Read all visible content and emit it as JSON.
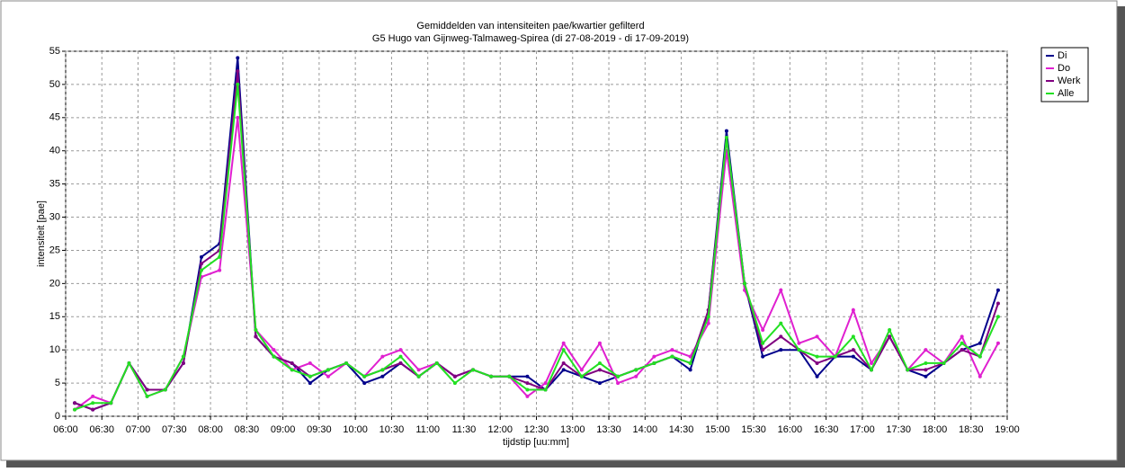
{
  "chart_data": {
    "type": "line",
    "title": "Gemiddelden van intensiteiten pae/kwartier gefilterd",
    "subtitle": "G5 Hugo van Gijnweg-Talmaweg-Spirea (di 27-08-2019 - di 17-09-2019)",
    "xlabel": "tijdstip [uu:mm]",
    "ylabel": "intensiteit [pae]",
    "x": [
      367.5,
      382.5,
      397.5,
      412.5,
      427.5,
      442.5,
      457.5,
      472.5,
      487.5,
      502.5,
      517.5,
      532.5,
      547.5,
      562.5,
      577.5,
      592.5,
      607.5,
      622.5,
      637.5,
      652.5,
      667.5,
      682.5,
      697.5,
      712.5,
      727.5,
      742.5,
      757.5,
      772.5,
      787.5,
      802.5,
      817.5,
      832.5,
      847.5,
      862.5,
      877.5,
      892.5,
      907.5,
      922.5,
      937.5,
      952.5,
      967.5,
      982.5,
      997.5,
      1012.5,
      1027.5,
      1042.5,
      1057.5,
      1072.5,
      1087.5,
      1102.5,
      1117.5,
      1132.5
    ],
    "series": [
      {
        "name": "Di",
        "color": "#00008b",
        "values": [
          2,
          1,
          2,
          8,
          4,
          4,
          8,
          24,
          26,
          54,
          12,
          9,
          8,
          5,
          7,
          8,
          5,
          6,
          8,
          6,
          8,
          6,
          7,
          6,
          6,
          6,
          4,
          7,
          6,
          5,
          6,
          7,
          8,
          9,
          7,
          16,
          43,
          20,
          9,
          10,
          10,
          6,
          9,
          9,
          7,
          12,
          7,
          6,
          8,
          10,
          11,
          19
        ]
      },
      {
        "name": "Do",
        "color": "#e020d0",
        "values": [
          1,
          3,
          2,
          8,
          3,
          4,
          9,
          21,
          22,
          45,
          13,
          10,
          7,
          8,
          6,
          8,
          6,
          9,
          10,
          7,
          8,
          6,
          7,
          6,
          6,
          3,
          5,
          11,
          7,
          11,
          5,
          6,
          9,
          10,
          9,
          14,
          40,
          19,
          13,
          19,
          11,
          12,
          9,
          16,
          8,
          12,
          7,
          10,
          8,
          12,
          6,
          11
        ]
      },
      {
        "name": "Werk",
        "color": "#800080",
        "values": [
          2,
          1,
          2,
          8,
          4,
          4,
          8,
          23,
          25,
          52,
          12,
          9,
          8,
          6,
          7,
          8,
          6,
          7,
          8,
          6,
          8,
          6,
          7,
          6,
          6,
          5,
          4,
          8,
          6,
          7,
          6,
          7,
          8,
          9,
          8,
          16,
          42,
          20,
          10,
          12,
          10,
          8,
          9,
          10,
          7,
          12,
          7,
          7,
          8,
          10,
          9,
          17
        ]
      },
      {
        "name": "Alle",
        "color": "#22e022",
        "values": [
          1,
          2,
          2,
          8,
          3,
          4,
          9,
          22,
          24,
          50,
          13,
          9,
          7,
          6,
          7,
          8,
          6,
          7,
          9,
          6,
          8,
          5,
          7,
          6,
          6,
          4,
          4,
          10,
          6,
          8,
          6,
          7,
          8,
          9,
          8,
          15,
          42,
          20,
          11,
          14,
          10,
          9,
          9,
          12,
          7,
          13,
          7,
          8,
          8,
          11,
          9,
          15
        ]
      }
    ],
    "xlim": [
      360,
      1140
    ],
    "xticks": [
      {
        "value": 360,
        "label": "06:00"
      },
      {
        "value": 390,
        "label": "06:30"
      },
      {
        "value": 420,
        "label": "07:00"
      },
      {
        "value": 450,
        "label": "07:30"
      },
      {
        "value": 480,
        "label": "08:00"
      },
      {
        "value": 510,
        "label": "08:30"
      },
      {
        "value": 540,
        "label": "09:00"
      },
      {
        "value": 570,
        "label": "09:30"
      },
      {
        "value": 600,
        "label": "10:00"
      },
      {
        "value": 630,
        "label": "10:30"
      },
      {
        "value": 660,
        "label": "11:00"
      },
      {
        "value": 690,
        "label": "11:30"
      },
      {
        "value": 720,
        "label": "12:00"
      },
      {
        "value": 750,
        "label": "12:30"
      },
      {
        "value": 780,
        "label": "13:00"
      },
      {
        "value": 810,
        "label": "13:30"
      },
      {
        "value": 840,
        "label": "14:00"
      },
      {
        "value": 870,
        "label": "14:30"
      },
      {
        "value": 900,
        "label": "15:00"
      },
      {
        "value": 930,
        "label": "15:30"
      },
      {
        "value": 960,
        "label": "16:00"
      },
      {
        "value": 990,
        "label": "16:30"
      },
      {
        "value": 1020,
        "label": "17:00"
      },
      {
        "value": 1050,
        "label": "17:30"
      },
      {
        "value": 1080,
        "label": "18:00"
      },
      {
        "value": 1110,
        "label": "18:30"
      },
      {
        "value": 1140,
        "label": "19:00"
      }
    ],
    "ylim": [
      0,
      55
    ],
    "yticks": [
      0,
      5,
      10,
      15,
      20,
      25,
      30,
      35,
      40,
      45,
      50,
      55
    ],
    "grid": true,
    "legend": "right"
  }
}
